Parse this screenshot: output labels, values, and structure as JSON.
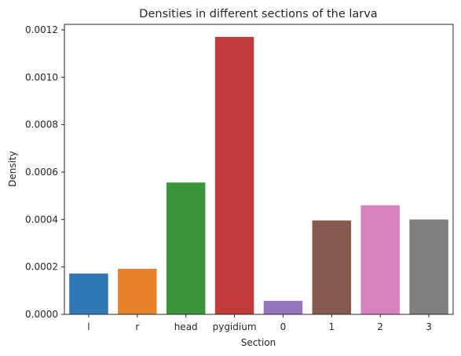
{
  "chart_data": {
    "type": "bar",
    "title": "Densities in different sections of the larva",
    "xlabel": "Section",
    "ylabel": "Density",
    "categories": [
      "l",
      "r",
      "head",
      "pygidium",
      "0",
      "1",
      "2",
      "3"
    ],
    "values": [
      0.000172,
      0.000192,
      0.000556,
      0.00117,
      5.7e-05,
      0.000396,
      0.00046,
      0.0004
    ],
    "colors": [
      "#2e79b5",
      "#e6822a",
      "#3b963b",
      "#c23b3b",
      "#9574bb",
      "#86594f",
      "#d683bf",
      "#7f7f7f"
    ],
    "ylim": [
      0,
      0.001223
    ],
    "yticks": [
      {
        "value": 0,
        "label": "0.0000"
      },
      {
        "value": 0.0002,
        "label": "0.0002"
      },
      {
        "value": 0.0004,
        "label": "0.0004"
      },
      {
        "value": 0.0006,
        "label": "0.0006"
      },
      {
        "value": 0.0008,
        "label": "0.0008"
      },
      {
        "value": 0.001,
        "label": "0.0010"
      },
      {
        "value": 0.0012,
        "label": "0.0012"
      }
    ],
    "grid": false
  }
}
